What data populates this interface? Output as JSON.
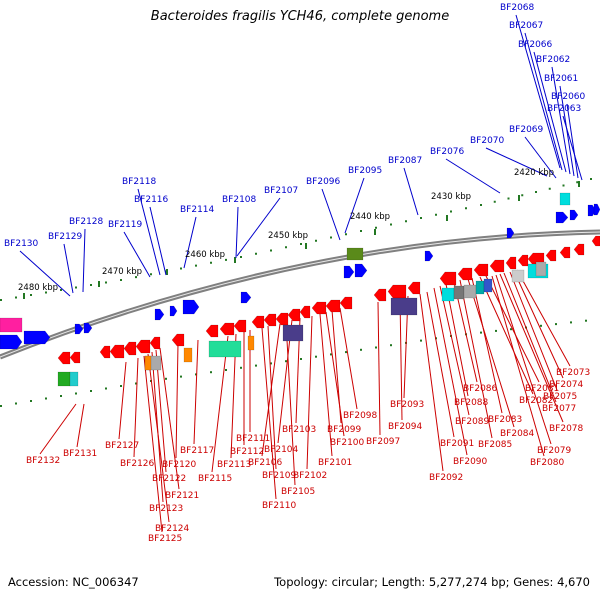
{
  "title": "Bacteroides fragilis YCH46, complete genome",
  "footer": {
    "accession": "Accession: NC_006347",
    "topology": "Topology: circular; Length: 5,277,274 bp; Genes: 4,670"
  },
  "colors": {
    "background": "#ffffff",
    "backbone": "#808080",
    "top_label": "#0000cc",
    "bottom_label": "#cc0000",
    "tick": "#227722"
  },
  "scale_labels": [
    "2420 kbp",
    "2430 kbp",
    "2440 kbp",
    "2450 kbp",
    "2460 kbp",
    "2470 kbp",
    "2480 kbp"
  ],
  "top_genes": [
    "BF2068",
    "BF2067",
    "BF2066",
    "BF2062",
    "BF2061",
    "BF2060",
    "BF2063",
    "BF2069",
    "BF2070",
    "BF2076",
    "BF2087",
    "BF2095",
    "BF2096",
    "BF2107",
    "BF2108",
    "BF2114",
    "BF2116",
    "BF2118",
    "BF2119",
    "BF2128",
    "BF2129",
    "BF2130"
  ],
  "bottom_genes": [
    "BF2073",
    "BF2074",
    "BF2075",
    "BF2077",
    "BF2078",
    "BF2079",
    "BF2080",
    "BF2081",
    "BF2082",
    "BF2083",
    "BF2084",
    "BF2085",
    "BF2086",
    "BF2088",
    "BF2089",
    "BF2090",
    "BF2091",
    "BF2092",
    "BF2093",
    "BF2094",
    "BF2097",
    "BF2098",
    "BF2099",
    "BF2100",
    "BF2101",
    "BF2102",
    "BF2103",
    "BF2104",
    "BF2105",
    "BF2106",
    "BF2109",
    "BF2110",
    "BF2111",
    "BF2112",
    "BF2113",
    "BF2115",
    "BF2117",
    "BF2120",
    "BF2121",
    "BF2122",
    "BF2123",
    "BF2124",
    "BF2125",
    "BF2126",
    "BF2127",
    "BF2131",
    "BF2132"
  ]
}
